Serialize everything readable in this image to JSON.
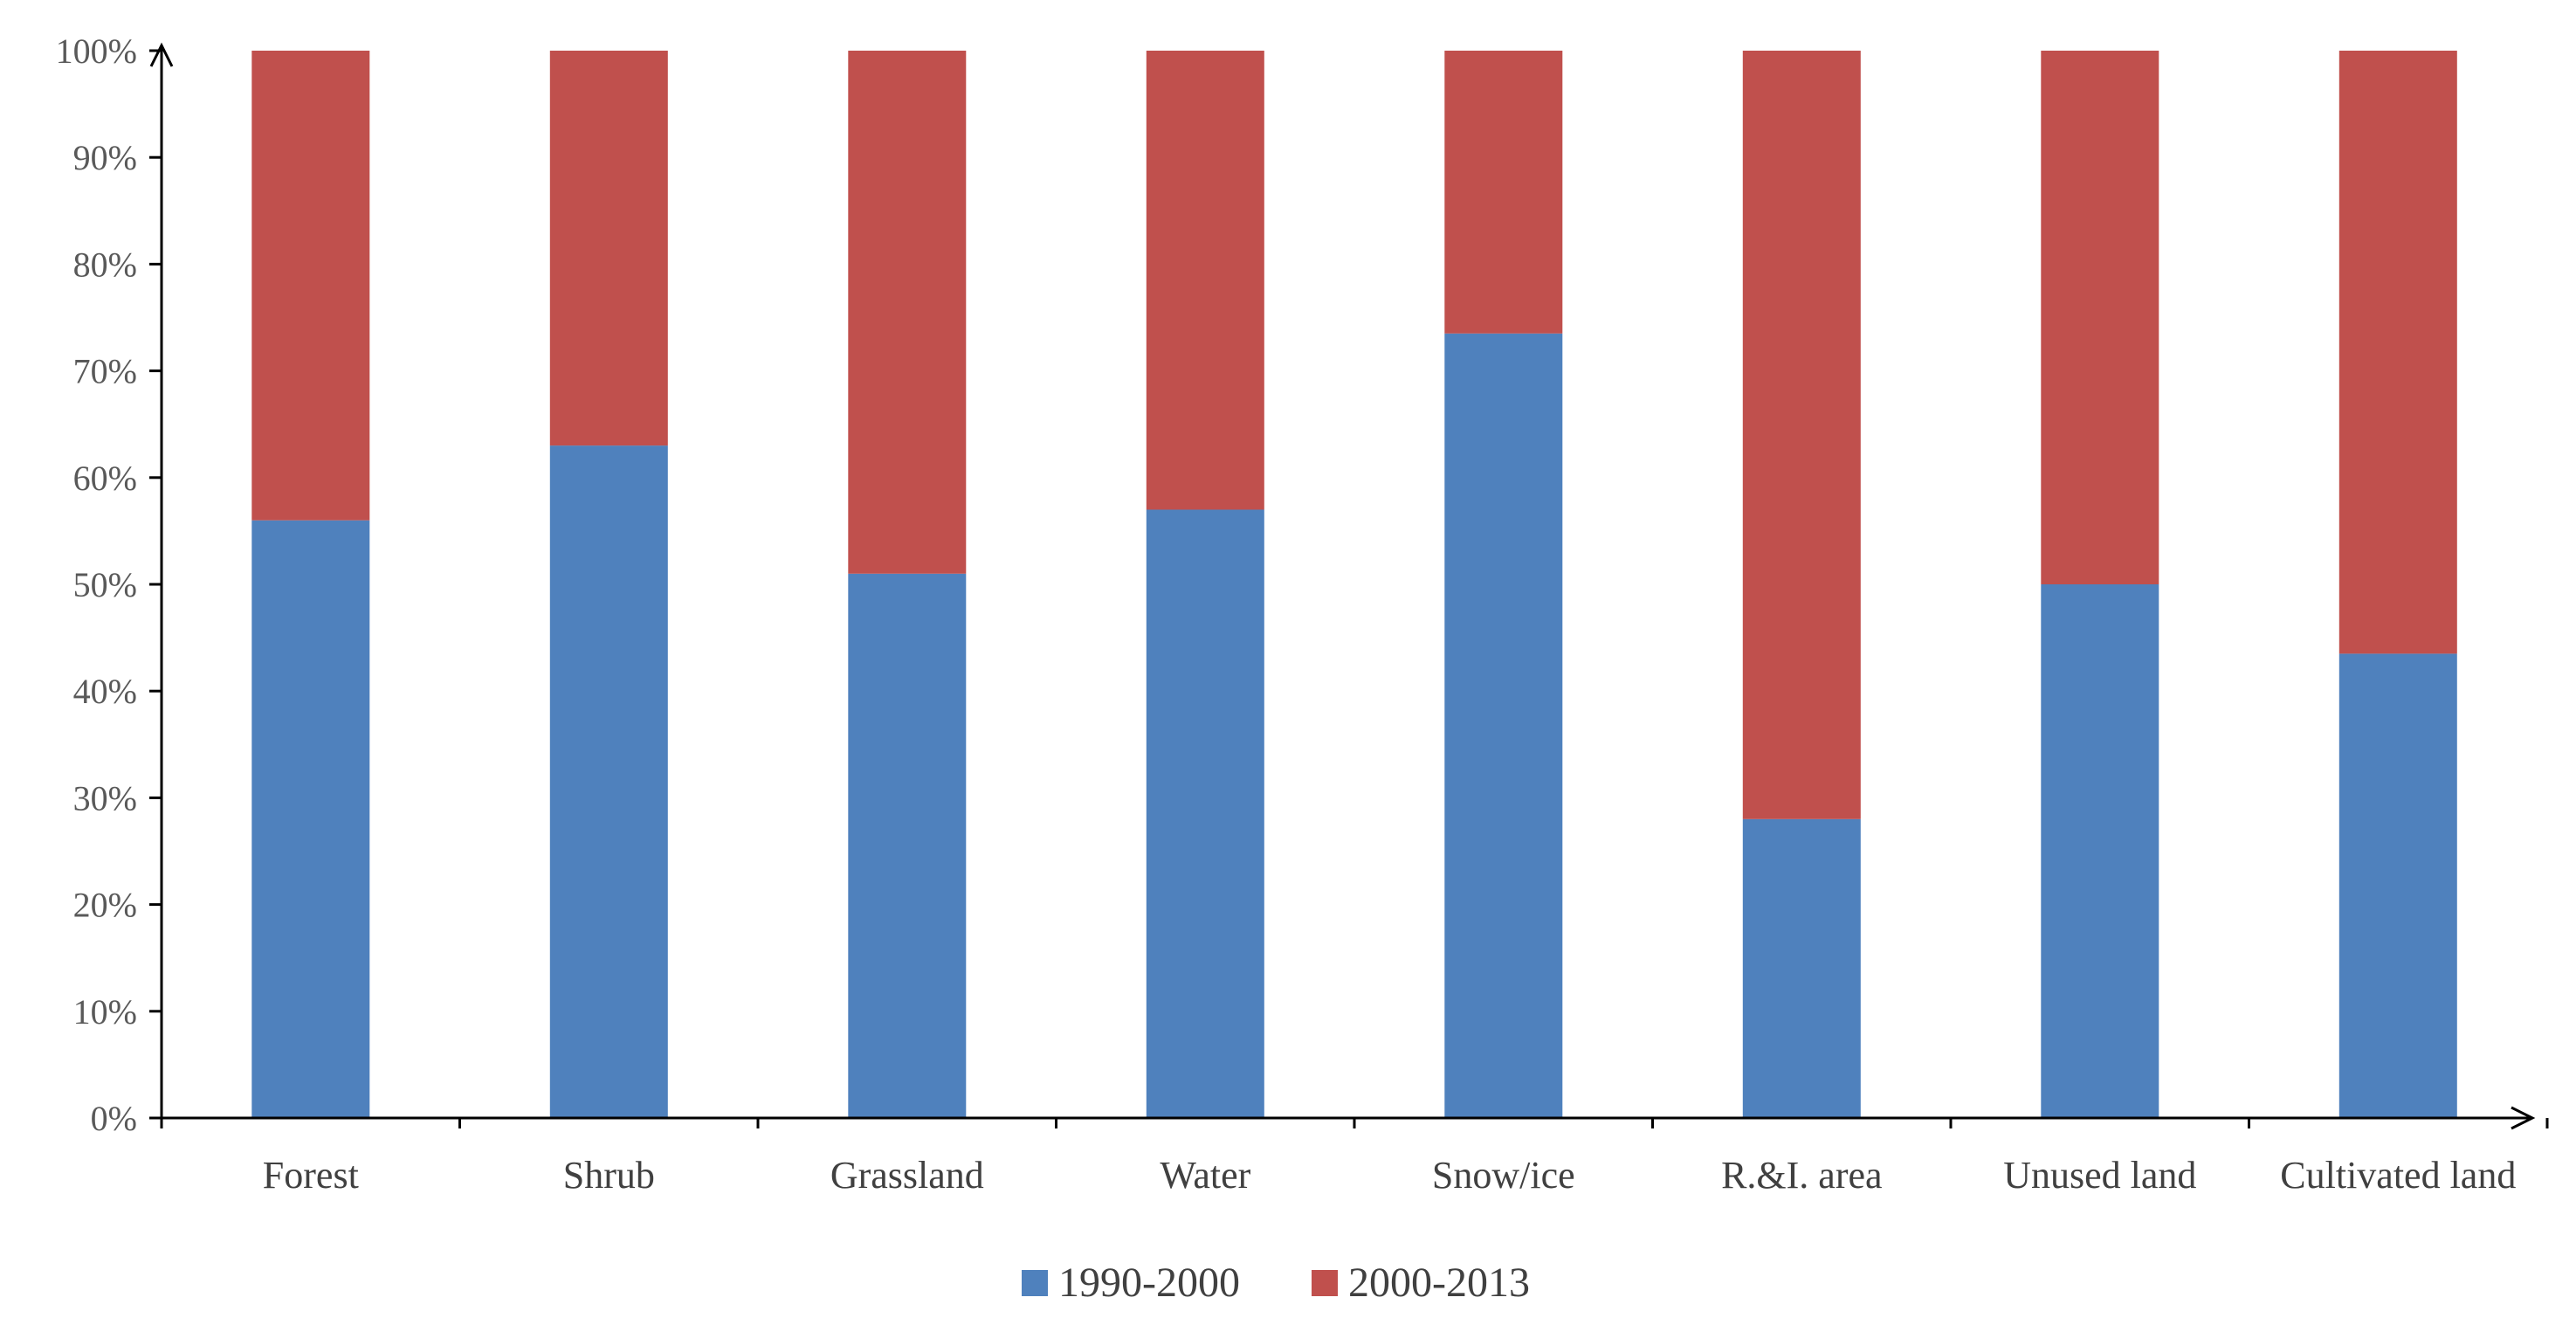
{
  "chart_data": {
    "type": "bar",
    "stacked": true,
    "percent": true,
    "title": "",
    "xlabel": "",
    "ylabel": "",
    "ylim": [
      0,
      100
    ],
    "y_ticks": [
      "0%",
      "10%",
      "20%",
      "30%",
      "40%",
      "50%",
      "60%",
      "70%",
      "80%",
      "90%",
      "100%"
    ],
    "categories": [
      "Forest",
      "Shrub",
      "Grassland",
      "Water",
      "Snow/ice",
      "R.&I. area",
      "Unused land",
      "Cultivated land"
    ],
    "series": [
      {
        "name": "1990-2000",
        "color": "#4F81BD",
        "values": [
          56,
          63,
          51,
          57,
          73.5,
          28,
          50,
          43.5
        ]
      },
      {
        "name": "2000-2013",
        "color": "#C0504D",
        "values": [
          44,
          37,
          49,
          43,
          26.5,
          72,
          50,
          56.5
        ]
      }
    ],
    "legend": {
      "position": "bottom"
    },
    "grid": false
  }
}
